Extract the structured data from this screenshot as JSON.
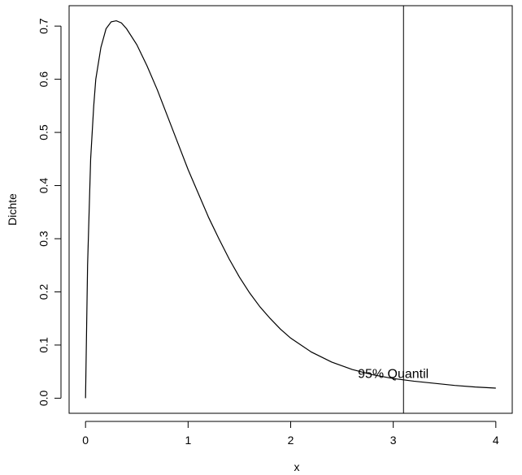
{
  "chart_data": {
    "type": "line",
    "title": "",
    "xlabel": "x",
    "ylabel": "Dichte",
    "xlim": [
      -0.16,
      4.16
    ],
    "ylim": [
      -0.0284,
      0.7384
    ],
    "x_ticks": [
      "0",
      "1",
      "2",
      "3",
      "4"
    ],
    "y_ticks": [
      "0.0",
      "0.1",
      "0.2",
      "0.3",
      "0.4",
      "0.5",
      "0.6",
      "0.7"
    ],
    "x_tick_values": [
      0,
      1,
      2,
      3,
      4
    ],
    "y_tick_values": [
      0,
      0.1,
      0.2,
      0.3,
      0.4,
      0.5,
      0.6,
      0.7
    ],
    "series": [
      {
        "x": [
          0.0,
          0.02,
          0.05,
          0.08,
          0.1,
          0.15,
          0.2,
          0.25,
          0.3,
          0.35,
          0.4,
          0.5,
          0.6,
          0.7,
          0.8,
          0.9,
          1.0,
          1.1,
          1.2,
          1.3,
          1.4,
          1.5,
          1.6,
          1.7,
          1.8,
          1.9,
          2.0,
          2.2,
          2.4,
          2.6,
          2.8,
          3.0,
          3.2,
          3.4,
          3.6,
          3.8,
          4.0
        ],
        "y": [
          0.0,
          0.25,
          0.45,
          0.55,
          0.6,
          0.66,
          0.695,
          0.708,
          0.71,
          0.706,
          0.695,
          0.665,
          0.625,
          0.58,
          0.53,
          0.48,
          0.43,
          0.385,
          0.34,
          0.3,
          0.262,
          0.228,
          0.198,
          0.172,
          0.15,
          0.13,
          0.113,
          0.087,
          0.068,
          0.054,
          0.044,
          0.037,
          0.032,
          0.028,
          0.024,
          0.021,
          0.019
        ]
      }
    ],
    "vline_x": 3.1,
    "annotation": {
      "text": "95% Quantil",
      "x": 3.0,
      "y": 0.047
    },
    "grid": false
  }
}
